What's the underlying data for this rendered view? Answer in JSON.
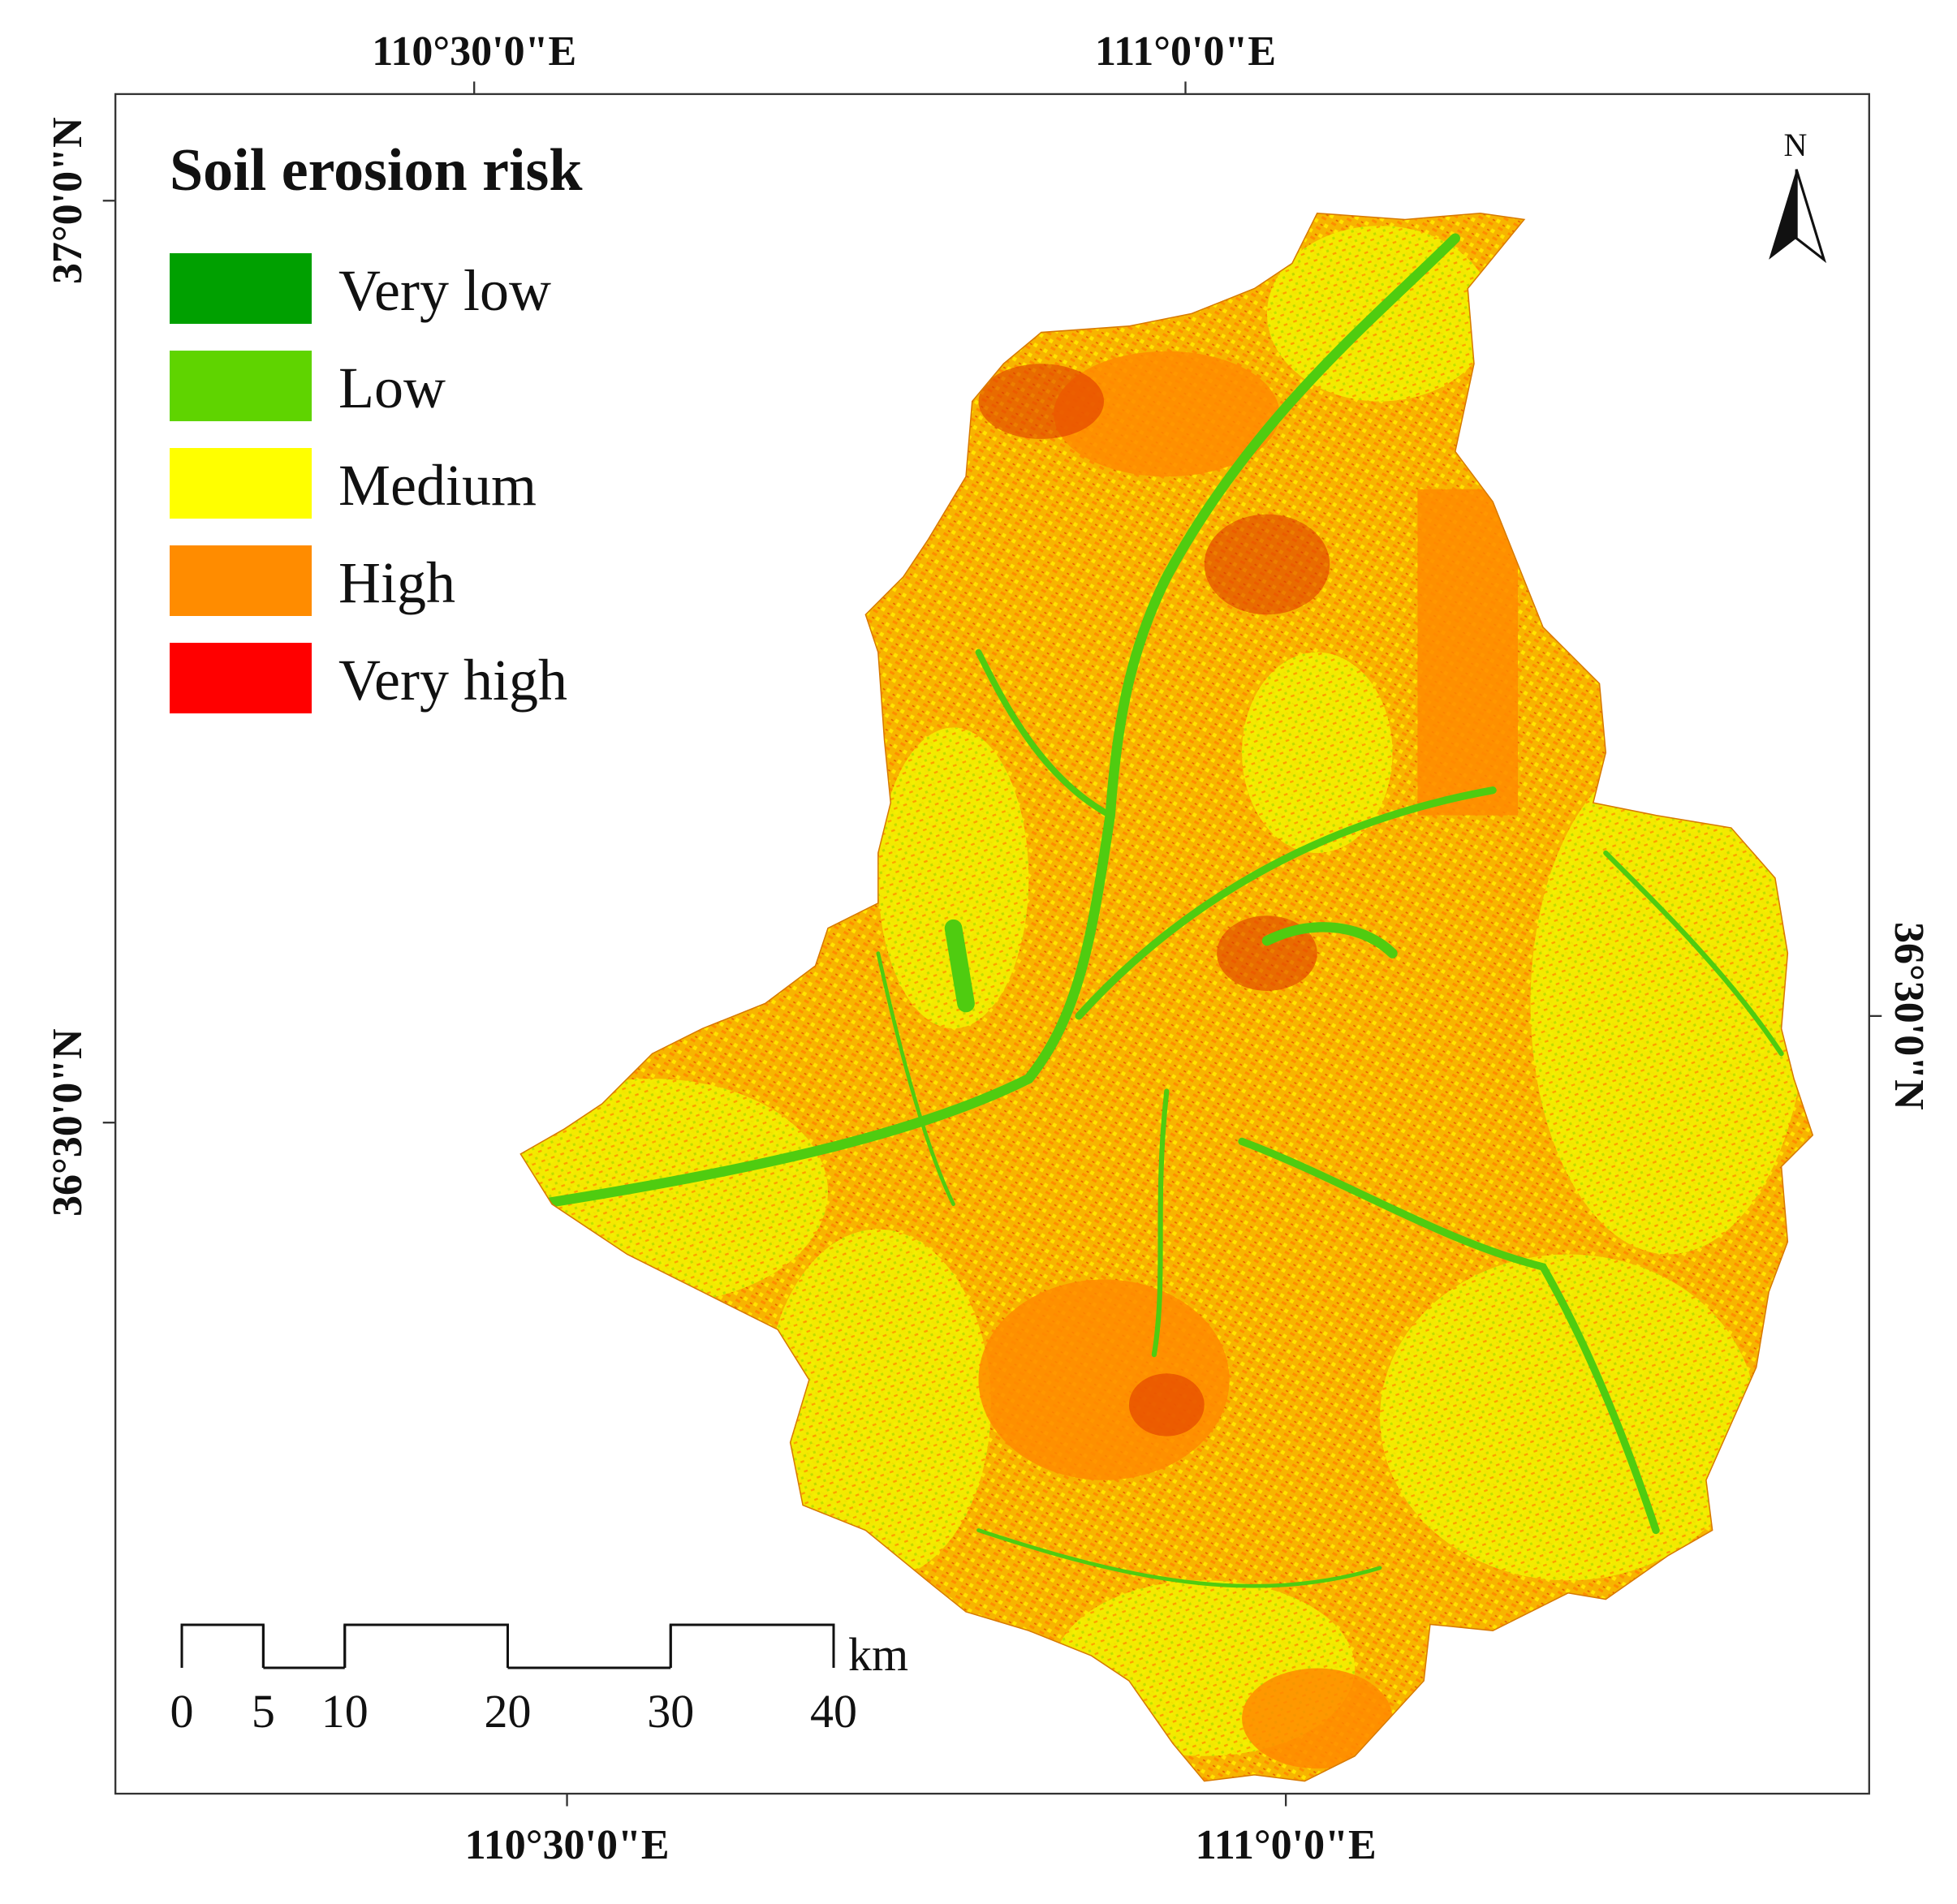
{
  "title": "Soil erosion risk",
  "legend": [
    {
      "label": "Very low",
      "color": "#00a000"
    },
    {
      "label": "Low",
      "color": "#5fd400"
    },
    {
      "label": "Medium",
      "color": "#ffff00"
    },
    {
      "label": "High",
      "color": "#ff8c00"
    },
    {
      "label": "Very high",
      "color": "#ff0000"
    }
  ],
  "north_label": "N",
  "axes": {
    "top": [
      "110°30'0\"E",
      "111°0'0\"E"
    ],
    "bottom": [
      "110°30'0\"E",
      "111°0'0\"E"
    ],
    "left": [
      "37°0'0\"N",
      "36°30'0\"N"
    ],
    "right": [
      "36°30'0\"N"
    ]
  },
  "scale_bar": {
    "ticks": [
      0,
      5,
      10,
      20,
      30,
      40
    ],
    "unit": "km"
  }
}
